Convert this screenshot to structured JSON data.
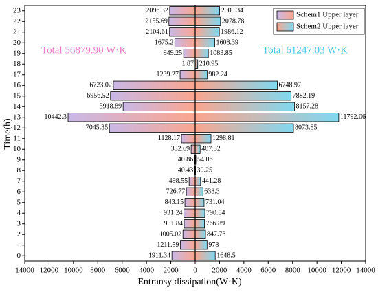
{
  "chart_data": {
    "type": "butterfly",
    "xlabel": "Entransy dissipation(W·K)",
    "ylabel": "Time(h)",
    "categories": [
      "0",
      "1",
      "2",
      "3",
      "4",
      "5",
      "6",
      "7",
      "8",
      "9",
      "10",
      "11",
      "12",
      "13",
      "14",
      "15",
      "16",
      "17",
      "18",
      "19",
      "20",
      "21",
      "22",
      "23"
    ],
    "series": [
      {
        "name": "Schem1 Upper layer",
        "colors": [
          "#c9b8e6",
          "#fba58e"
        ],
        "values": [
          -1911.34,
          -1211.59,
          -1005.02,
          -901.84,
          -931.24,
          -843.15,
          -726.77,
          -498.55,
          -40.43,
          -40.86,
          -332.69,
          -1128.17,
          -7045.35,
          -10442.3,
          -5918.89,
          -6956.52,
          -6723.02,
          -1239.27,
          -1.87,
          -949.25,
          -1675.2,
          -2104.61,
          -2155.69,
          -2096.32
        ],
        "value_labels": [
          "1911.34",
          "1211.59",
          "1005.02",
          "901.84",
          "931.24",
          "843.15",
          "726.77",
          "498.55",
          "40.43",
          "40.86",
          "332.69",
          "1128.17",
          "7045.35",
          "10442.3",
          "5918.89",
          "6956.52",
          "6723.02",
          "1239.27",
          "1.87",
          "949.25",
          "1675.2",
          "2104.61",
          "2155.69",
          "2096.32"
        ]
      },
      {
        "name": "Schem2 Upper layer",
        "colors": [
          "#fba58e",
          "#80d8f0"
        ],
        "values": [
          1648.5,
          978,
          847.73,
          766.89,
          790.84,
          731.04,
          638.3,
          441.28,
          30.25,
          54.06,
          407.32,
          1298.81,
          8073.85,
          11792.06,
          8157.28,
          7882.19,
          6748.97,
          982.24,
          210.95,
          1083.85,
          1608.39,
          1986.12,
          2078.78,
          2009.34
        ]
      }
    ],
    "annotations": [
      {
        "text": "Total  56879.90 W·K",
        "color": "#ea80cc"
      },
      {
        "text": "Total  61247.03 W·K",
        "color": "#48c8e8"
      }
    ],
    "xlim": [
      -14000,
      14000
    ],
    "xticks": [
      {
        "value": -14000,
        "label": "14000"
      },
      {
        "value": -12000,
        "label": "12000"
      },
      {
        "value": -10000,
        "label": "10000"
      },
      {
        "value": -8000,
        "label": "8000"
      },
      {
        "value": -6000,
        "label": "6000"
      },
      {
        "value": -4000,
        "label": "4000"
      },
      {
        "value": -2000,
        "label": "2000"
      },
      0,
      2000,
      4000,
      6000,
      8000,
      10000,
      12000,
      14000
    ],
    "legend": "upper right"
  }
}
